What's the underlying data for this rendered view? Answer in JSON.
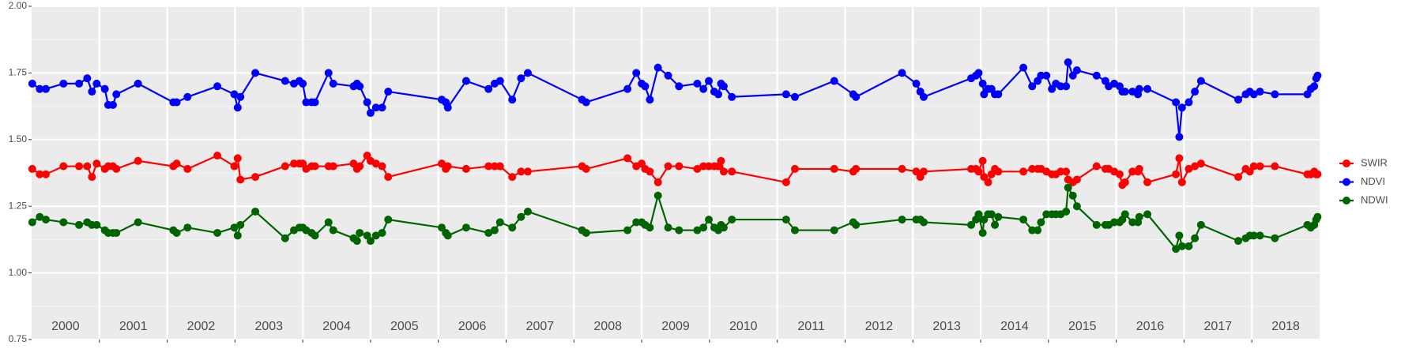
{
  "chart_data": {
    "type": "line",
    "x": [
      2000.01,
      2000.12,
      2000.21,
      2000.47,
      2000.7,
      2000.82,
      2000.89,
      2000.96,
      2001.08,
      2001.13,
      2001.2,
      2001.25,
      2001.57,
      2002.09,
      2002.14,
      2002.3,
      2002.74,
      2002.99,
      2003.04,
      2003.08,
      2003.3,
      2003.74,
      2003.87,
      2003.95,
      2004.0,
      2004.05,
      2004.13,
      2004.18,
      2004.38,
      2004.45,
      2004.75,
      2004.8,
      2004.84,
      2004.95,
      2005.0,
      2005.08,
      2005.17,
      2005.26,
      2006.05,
      2006.11,
      2006.14,
      2006.41,
      2006.74,
      2006.83,
      2006.91,
      2007.09,
      2007.22,
      2007.32,
      2008.12,
      2008.18,
      2008.79,
      2008.92,
      2009.0,
      2009.05,
      2009.12,
      2009.24,
      2009.39,
      2009.55,
      2009.82,
      2009.91,
      2009.99,
      2010.07,
      2010.13,
      2010.17,
      2010.21,
      2010.33,
      2011.13,
      2011.26,
      2011.84,
      2012.12,
      2012.16,
      2012.84,
      2013.05,
      2013.11,
      2013.16,
      2013.86,
      2013.93,
      2013.97,
      2014.03,
      2014.05,
      2014.11,
      2014.16,
      2014.21,
      2014.26,
      2014.63,
      2014.76,
      2014.84,
      2014.89,
      2014.97,
      2015.05,
      2015.11,
      2015.18,
      2015.26,
      2015.29,
      2015.36,
      2015.42,
      2015.71,
      2015.84,
      2015.89,
      2015.97,
      2016.05,
      2016.09,
      2016.13,
      2016.24,
      2016.32,
      2016.34,
      2016.46,
      2016.88,
      2016.93,
      2016.97,
      2017.07,
      2017.16,
      2017.25,
      2017.8,
      2017.91,
      2017.97,
      2018.03,
      2018.12,
      2018.34,
      2018.82,
      2018.87,
      2018.92,
      2018.95,
      2018.97
    ],
    "series": [
      {
        "name": "SWIR",
        "color": "#ff0000",
        "values": [
          1.39,
          1.37,
          1.37,
          1.4,
          1.4,
          1.4,
          1.36,
          1.41,
          1.39,
          1.4,
          1.4,
          1.39,
          1.42,
          1.4,
          1.41,
          1.39,
          1.44,
          1.4,
          1.43,
          1.35,
          1.36,
          1.4,
          1.41,
          1.41,
          1.41,
          1.39,
          1.4,
          1.4,
          1.4,
          1.4,
          1.41,
          1.39,
          1.4,
          1.44,
          1.42,
          1.41,
          1.4,
          1.36,
          1.41,
          1.39,
          1.4,
          1.39,
          1.4,
          1.4,
          1.4,
          1.36,
          1.38,
          1.38,
          1.4,
          1.39,
          1.43,
          1.4,
          1.41,
          1.39,
          1.38,
          1.34,
          1.4,
          1.4,
          1.39,
          1.4,
          1.4,
          1.4,
          1.4,
          1.42,
          1.38,
          1.38,
          1.34,
          1.39,
          1.39,
          1.38,
          1.39,
          1.39,
          1.38,
          1.36,
          1.38,
          1.39,
          1.39,
          1.38,
          1.42,
          1.36,
          1.34,
          1.37,
          1.39,
          1.38,
          1.38,
          1.39,
          1.39,
          1.39,
          1.38,
          1.37,
          1.37,
          1.38,
          1.38,
          1.35,
          1.34,
          1.35,
          1.4,
          1.39,
          1.39,
          1.38,
          1.37,
          1.33,
          1.34,
          1.38,
          1.38,
          1.39,
          1.34,
          1.37,
          1.43,
          1.34,
          1.39,
          1.4,
          1.41,
          1.36,
          1.39,
          1.38,
          1.4,
          1.4,
          1.4,
          1.37,
          1.37,
          1.38,
          1.37,
          1.37
        ]
      },
      {
        "name": "NDVI",
        "color": "#0000ff",
        "values": [
          1.71,
          1.69,
          1.69,
          1.71,
          1.71,
          1.73,
          1.68,
          1.71,
          1.69,
          1.63,
          1.63,
          1.67,
          1.71,
          1.64,
          1.64,
          1.66,
          1.7,
          1.67,
          1.62,
          1.66,
          1.75,
          1.72,
          1.71,
          1.72,
          1.71,
          1.64,
          1.64,
          1.64,
          1.75,
          1.71,
          1.7,
          1.71,
          1.7,
          1.64,
          1.6,
          1.62,
          1.62,
          1.68,
          1.65,
          1.64,
          1.62,
          1.72,
          1.69,
          1.71,
          1.72,
          1.65,
          1.73,
          1.75,
          1.65,
          1.64,
          1.69,
          1.75,
          1.71,
          1.7,
          1.65,
          1.77,
          1.74,
          1.7,
          1.71,
          1.69,
          1.72,
          1.68,
          1.67,
          1.71,
          1.7,
          1.66,
          1.67,
          1.66,
          1.72,
          1.67,
          1.66,
          1.75,
          1.71,
          1.68,
          1.66,
          1.73,
          1.74,
          1.75,
          1.71,
          1.67,
          1.69,
          1.69,
          1.67,
          1.67,
          1.77,
          1.7,
          1.72,
          1.74,
          1.74,
          1.69,
          1.71,
          1.7,
          1.7,
          1.79,
          1.74,
          1.76,
          1.74,
          1.72,
          1.7,
          1.71,
          1.7,
          1.68,
          1.68,
          1.68,
          1.67,
          1.69,
          1.69,
          1.64,
          1.51,
          1.62,
          1.64,
          1.68,
          1.72,
          1.65,
          1.67,
          1.68,
          1.67,
          1.68,
          1.67,
          1.67,
          1.69,
          1.7,
          1.73,
          1.74
        ]
      },
      {
        "name": "NDWI",
        "color": "#006400",
        "values": [
          1.19,
          1.21,
          1.2,
          1.19,
          1.18,
          1.19,
          1.18,
          1.18,
          1.16,
          1.15,
          1.15,
          1.15,
          1.19,
          1.16,
          1.15,
          1.17,
          1.15,
          1.17,
          1.14,
          1.18,
          1.23,
          1.13,
          1.16,
          1.17,
          1.17,
          1.16,
          1.15,
          1.14,
          1.19,
          1.16,
          1.13,
          1.12,
          1.15,
          1.14,
          1.12,
          1.14,
          1.15,
          1.2,
          1.17,
          1.15,
          1.14,
          1.17,
          1.15,
          1.16,
          1.19,
          1.17,
          1.21,
          1.23,
          1.16,
          1.15,
          1.16,
          1.19,
          1.19,
          1.18,
          1.17,
          1.29,
          1.17,
          1.16,
          1.16,
          1.17,
          1.2,
          1.17,
          1.16,
          1.18,
          1.17,
          1.2,
          1.2,
          1.16,
          1.16,
          1.19,
          1.18,
          1.2,
          1.2,
          1.2,
          1.19,
          1.18,
          1.2,
          1.22,
          1.15,
          1.2,
          1.22,
          1.22,
          1.18,
          1.21,
          1.2,
          1.16,
          1.16,
          1.19,
          1.22,
          1.22,
          1.22,
          1.22,
          1.23,
          1.32,
          1.29,
          1.25,
          1.18,
          1.18,
          1.18,
          1.19,
          1.19,
          1.2,
          1.22,
          1.19,
          1.19,
          1.21,
          1.22,
          1.09,
          1.14,
          1.1,
          1.1,
          1.13,
          1.18,
          1.12,
          1.13,
          1.14,
          1.14,
          1.14,
          1.13,
          1.18,
          1.17,
          1.18,
          1.2,
          1.21
        ]
      }
    ],
    "xlim": [
      2000,
      2019
    ],
    "xticks": [
      {
        "value": 2000.5,
        "label": "2000"
      },
      {
        "value": 2001.5,
        "label": "2001"
      },
      {
        "value": 2002.5,
        "label": "2002"
      },
      {
        "value": 2003.5,
        "label": "2003"
      },
      {
        "value": 2004.5,
        "label": "2004"
      },
      {
        "value": 2005.5,
        "label": "2005"
      },
      {
        "value": 2006.5,
        "label": "2006"
      },
      {
        "value": 2007.5,
        "label": "2007"
      },
      {
        "value": 2008.5,
        "label": "2008"
      },
      {
        "value": 2009.5,
        "label": "2009"
      },
      {
        "value": 2010.5,
        "label": "2010"
      },
      {
        "value": 2011.5,
        "label": "2011"
      },
      {
        "value": 2012.5,
        "label": "2012"
      },
      {
        "value": 2013.5,
        "label": "2013"
      },
      {
        "value": 2014.5,
        "label": "2014"
      },
      {
        "value": 2015.5,
        "label": "2015"
      },
      {
        "value": 2016.5,
        "label": "2016"
      },
      {
        "value": 2017.5,
        "label": "2017"
      },
      {
        "value": 2018.5,
        "label": "2018"
      }
    ],
    "xgrid": [
      2001,
      2002,
      2003,
      2004,
      2005,
      2006,
      2007,
      2008,
      2009,
      2010,
      2011,
      2012,
      2013,
      2014,
      2015,
      2016,
      2017,
      2018
    ],
    "ylim": [
      0.75,
      2.0
    ],
    "yticks": [
      0.75,
      {
        "value": 1,
        "label": "1.00"
      },
      1.25,
      {
        "value": 1.5,
        "label": "1.50"
      },
      1.75,
      {
        "value": 2,
        "label": "2.00"
      }
    ],
    "minor_yticks": [
      0.875,
      1.125,
      1.375,
      1.625,
      1.875
    ],
    "grid": true,
    "legend": "right"
  }
}
